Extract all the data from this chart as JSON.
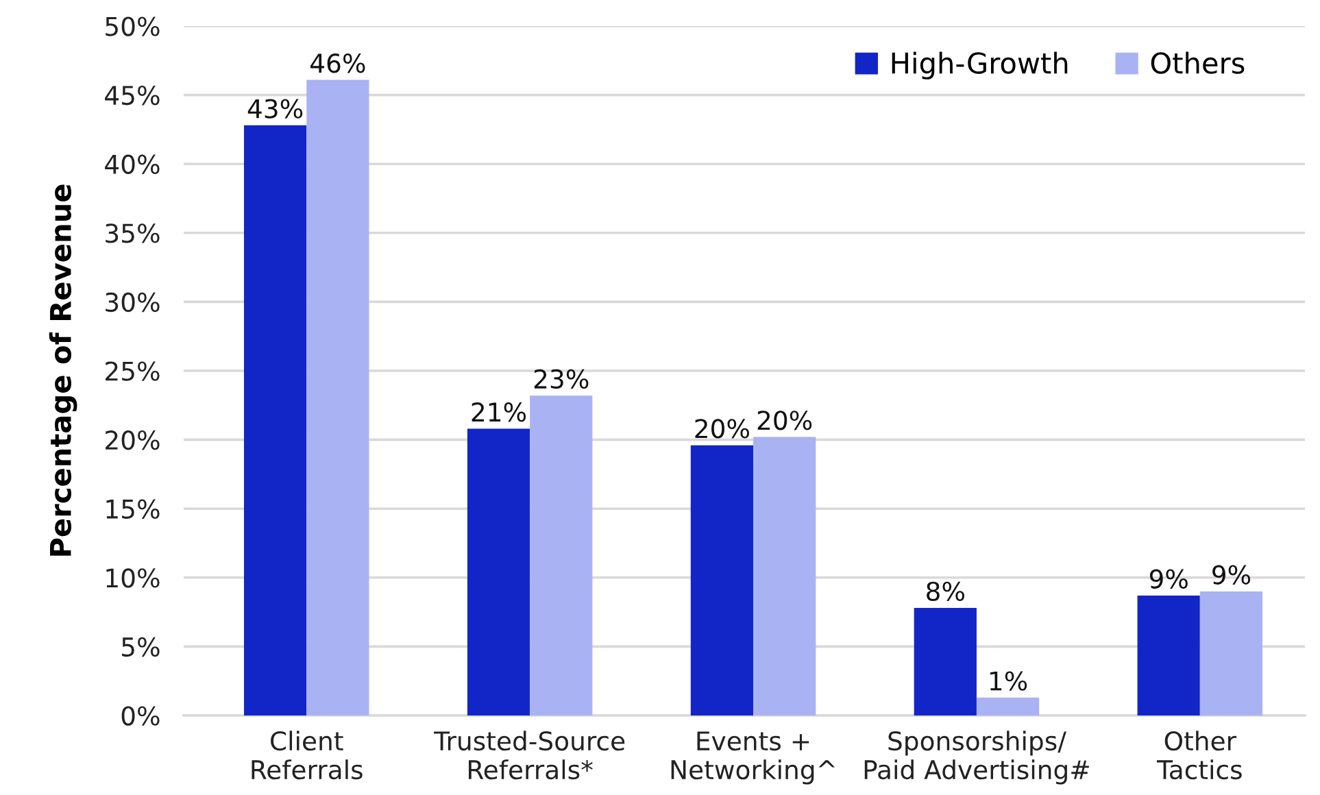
{
  "chart_data": {
    "type": "bar",
    "ylabel": "Percentage of Revenue",
    "categories": [
      "Client\nReferrals",
      "Trusted-Source\nReferrals*",
      "Events +\nNetworking^",
      "Sponsorships/\nPaid Advertising#",
      "Other\nTactics"
    ],
    "series": [
      {
        "name": "High-Growth",
        "color": "#1226c8",
        "values": [
          42.8,
          20.8,
          19.6,
          7.8,
          8.7
        ],
        "value_labels": [
          "43%",
          "21%",
          "20%",
          "8%",
          "9%"
        ]
      },
      {
        "name": "Others",
        "color": "#a9b3f3",
        "values": [
          46.1,
          23.2,
          20.2,
          1.3,
          9.0
        ],
        "value_labels": [
          "46%",
          "23%",
          "20%",
          "1%",
          "9%"
        ]
      }
    ],
    "ylim": [
      0,
      50
    ],
    "yticks": [
      {
        "value": 0,
        "label": "0%"
      },
      {
        "value": 5,
        "label": "5%"
      },
      {
        "value": 10,
        "label": "10%"
      },
      {
        "value": 15,
        "label": "15%"
      },
      {
        "value": 20,
        "label": "20%"
      },
      {
        "value": 25,
        "label": "25%"
      },
      {
        "value": 30,
        "label": "30%"
      },
      {
        "value": 35,
        "label": "35%"
      },
      {
        "value": 40,
        "label": "40%"
      },
      {
        "value": 45,
        "label": "45%"
      },
      {
        "value": 50,
        "label": "50%"
      }
    ],
    "grid": "y",
    "legend": "top right"
  }
}
